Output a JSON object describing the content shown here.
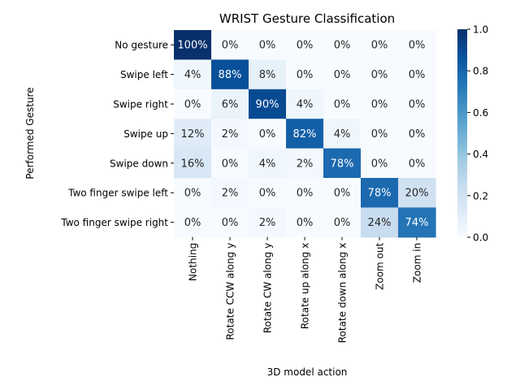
{
  "chart_data": {
    "type": "heatmap",
    "title": "WRIST Gesture Classification",
    "xlabel": "3D model action",
    "ylabel": "Performed Gesture",
    "x_categories": [
      "Nothing",
      "Rotate CCW along y",
      "Rotate CW along y",
      "Rotate up along x",
      "Rotate down along x",
      "Zoom out",
      "Zoom in"
    ],
    "y_categories": [
      "No gesture",
      "Swipe left",
      "Swipe right",
      "Swipe up",
      "Swipe down",
      "Two finger swipe left",
      "Two finger swipe right"
    ],
    "values": [
      [
        1.0,
        0.0,
        0.0,
        0.0,
        0.0,
        0.0,
        0.0
      ],
      [
        0.04,
        0.88,
        0.08,
        0.0,
        0.0,
        0.0,
        0.0
      ],
      [
        0.0,
        0.06,
        0.9,
        0.04,
        0.0,
        0.0,
        0.0
      ],
      [
        0.12,
        0.02,
        0.0,
        0.82,
        0.04,
        0.0,
        0.0
      ],
      [
        0.16,
        0.0,
        0.04,
        0.02,
        0.78,
        0.0,
        0.0
      ],
      [
        0.0,
        0.02,
        0.0,
        0.0,
        0.0,
        0.78,
        0.2
      ],
      [
        0.0,
        0.0,
        0.02,
        0.0,
        0.0,
        0.24,
        0.74
      ]
    ],
    "cell_labels": [
      [
        "100%",
        "0%",
        "0%",
        "0%",
        "0%",
        "0%",
        "0%"
      ],
      [
        "4%",
        "88%",
        "8%",
        "0%",
        "0%",
        "0%",
        "0%"
      ],
      [
        "0%",
        "6%",
        "90%",
        "4%",
        "0%",
        "0%",
        "0%"
      ],
      [
        "12%",
        "2%",
        "0%",
        "82%",
        "4%",
        "0%",
        "0%"
      ],
      [
        "16%",
        "0%",
        "4%",
        "2%",
        "78%",
        "0%",
        "0%"
      ],
      [
        "0%",
        "2%",
        "0%",
        "0%",
        "0%",
        "78%",
        "20%"
      ],
      [
        "0%",
        "0%",
        "2%",
        "0%",
        "0%",
        "24%",
        "74%"
      ]
    ],
    "colormap": "Blues",
    "colorbar": {
      "range": [
        0,
        1
      ],
      "ticks": [
        0.0,
        0.2,
        0.4,
        0.6,
        0.8,
        1.0
      ],
      "tick_labels": [
        "0.0",
        "0.2",
        "0.4",
        "0.6",
        "0.8",
        "1.0"
      ]
    }
  }
}
